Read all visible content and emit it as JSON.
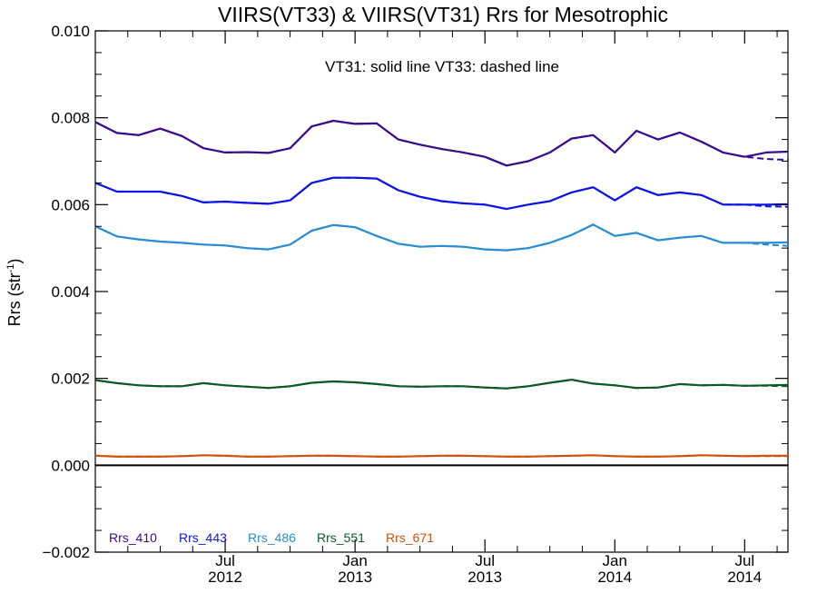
{
  "chart_data": {
    "type": "line",
    "title": "VIIRS(VT33) & VIIRS(VT31)  Rrs for Mesotrophic",
    "annotation": "VT31: solid line   VT33: dashed line",
    "ylabel": "Rrs (str",
    "ylabel_sup": "-1",
    "ylabel_close": ")",
    "ylim": [
      -0.002,
      0.01
    ],
    "yticks": [
      {
        "value": -0.002,
        "label": "−0.002"
      },
      {
        "value": 0.0,
        "label": "0.000"
      },
      {
        "value": 0.002,
        "label": "0.002"
      },
      {
        "value": 0.004,
        "label": "0.004"
      },
      {
        "value": 0.006,
        "label": "0.006"
      },
      {
        "value": 0.008,
        "label": "0.008"
      },
      {
        "value": 0.01,
        "label": "0.010"
      }
    ],
    "xlim": [
      "2012-01",
      "2014-09"
    ],
    "xticks": [
      {
        "date": "2012-07",
        "line1": "Jul",
        "line2": "2012"
      },
      {
        "date": "2013-01",
        "line1": "Jan",
        "line2": "2013"
      },
      {
        "date": "2013-07",
        "line1": "Jul",
        "line2": "2013"
      },
      {
        "date": "2014-01",
        "line1": "Jan",
        "line2": "2014"
      },
      {
        "date": "2014-07",
        "line1": "Jul",
        "line2": "2014"
      }
    ],
    "minor_ticks_per_major": 3,
    "zero_line": true,
    "legend_position": "bottom-left",
    "x": [
      "2012-01",
      "2012-02",
      "2012-03",
      "2012-04",
      "2012-05",
      "2012-06",
      "2012-07",
      "2012-08",
      "2012-09",
      "2012-10",
      "2012-11",
      "2012-12",
      "2013-01",
      "2013-02",
      "2013-03",
      "2013-04",
      "2013-05",
      "2013-06",
      "2013-07",
      "2013-08",
      "2013-09",
      "2013-10",
      "2013-11",
      "2013-12",
      "2014-01",
      "2014-02",
      "2014-03",
      "2014-04",
      "2014-05",
      "2014-06",
      "2014-07",
      "2014-08",
      "2014-09"
    ],
    "series": [
      {
        "name": "Rrs_410",
        "color": "#3a0a8c",
        "values": [
          0.0079,
          0.00765,
          0.0076,
          0.00775,
          0.00758,
          0.0073,
          0.0072,
          0.00721,
          0.00719,
          0.0073,
          0.0078,
          0.00793,
          0.00786,
          0.00787,
          0.0075,
          0.00738,
          0.00728,
          0.0072,
          0.0071,
          0.0069,
          0.007,
          0.0072,
          0.00752,
          0.0076,
          0.0072,
          0.0077,
          0.0075,
          0.00766,
          0.00745,
          0.0072,
          0.0071,
          0.0072,
          0.00722
        ],
        "dashed_values": [
          0.0079,
          0.00765,
          0.0076,
          0.00775,
          0.00758,
          0.0073,
          0.0072,
          0.00721,
          0.00719,
          0.0073,
          0.0078,
          0.00793,
          0.00786,
          0.00787,
          0.0075,
          0.00738,
          0.00728,
          0.0072,
          0.0071,
          0.0069,
          0.007,
          0.0072,
          0.00752,
          0.0076,
          0.0072,
          0.0077,
          0.0075,
          0.00766,
          0.00745,
          0.0072,
          0.0071,
          0.00705,
          0.00703
        ]
      },
      {
        "name": "Rrs_443",
        "color": "#0a14e6",
        "values": [
          0.0065,
          0.0063,
          0.0063,
          0.0063,
          0.0062,
          0.00605,
          0.00607,
          0.00604,
          0.00602,
          0.0061,
          0.0065,
          0.00662,
          0.00662,
          0.0066,
          0.00633,
          0.00618,
          0.00608,
          0.00603,
          0.006,
          0.0059,
          0.006,
          0.00608,
          0.00628,
          0.0064,
          0.0061,
          0.0064,
          0.00622,
          0.00628,
          0.00622,
          0.006,
          0.006,
          0.006,
          0.00601
        ],
        "dashed_values": [
          0.0065,
          0.0063,
          0.0063,
          0.0063,
          0.0062,
          0.00605,
          0.00607,
          0.00604,
          0.00602,
          0.0061,
          0.0065,
          0.00662,
          0.00662,
          0.0066,
          0.00633,
          0.00618,
          0.00608,
          0.00603,
          0.006,
          0.0059,
          0.006,
          0.00608,
          0.00628,
          0.0064,
          0.0061,
          0.0064,
          0.00622,
          0.00628,
          0.00622,
          0.006,
          0.006,
          0.00596,
          0.00595
        ]
      },
      {
        "name": "Rrs_486",
        "color": "#2a8cd2",
        "values": [
          0.0055,
          0.00527,
          0.0052,
          0.00515,
          0.00512,
          0.00508,
          0.00506,
          0.005,
          0.00497,
          0.00508,
          0.0054,
          0.00553,
          0.00548,
          0.00528,
          0.0051,
          0.00503,
          0.00505,
          0.00503,
          0.00497,
          0.00495,
          0.005,
          0.00512,
          0.0053,
          0.00554,
          0.00528,
          0.00535,
          0.00518,
          0.00524,
          0.00528,
          0.00512,
          0.00512,
          0.00512,
          0.00513
        ],
        "dashed_values": [
          0.0055,
          0.00527,
          0.0052,
          0.00515,
          0.00512,
          0.00508,
          0.00506,
          0.005,
          0.00497,
          0.00508,
          0.0054,
          0.00553,
          0.00548,
          0.00528,
          0.0051,
          0.00503,
          0.00505,
          0.00503,
          0.00497,
          0.00495,
          0.005,
          0.00512,
          0.0053,
          0.00554,
          0.00528,
          0.00535,
          0.00518,
          0.00524,
          0.00528,
          0.00512,
          0.00512,
          0.00508,
          0.00505
        ]
      },
      {
        "name": "Rrs_551",
        "color": "#0a5a23",
        "values": [
          0.00196,
          0.00189,
          0.00184,
          0.00182,
          0.00182,
          0.00189,
          0.00184,
          0.00181,
          0.00178,
          0.00182,
          0.0019,
          0.00193,
          0.00191,
          0.00187,
          0.00182,
          0.00181,
          0.00182,
          0.00182,
          0.00179,
          0.00177,
          0.00182,
          0.0019,
          0.00197,
          0.00188,
          0.00184,
          0.00178,
          0.00179,
          0.00187,
          0.00184,
          0.00185,
          0.00183,
          0.00184,
          0.00185
        ],
        "dashed_values": [
          0.00196,
          0.00189,
          0.00184,
          0.00182,
          0.00182,
          0.00189,
          0.00184,
          0.00181,
          0.00178,
          0.00182,
          0.0019,
          0.00193,
          0.00191,
          0.00187,
          0.00182,
          0.00181,
          0.00182,
          0.00182,
          0.00179,
          0.00177,
          0.00182,
          0.0019,
          0.00197,
          0.00188,
          0.00184,
          0.00178,
          0.00179,
          0.00187,
          0.00184,
          0.00185,
          0.00183,
          0.00183,
          0.00182
        ]
      },
      {
        "name": "Rrs_671",
        "color": "#d2500a",
        "values": [
          0.00022,
          0.0002,
          0.0002,
          0.0002,
          0.00021,
          0.00023,
          0.00022,
          0.0002,
          0.0002,
          0.00021,
          0.00022,
          0.00022,
          0.00021,
          0.0002,
          0.0002,
          0.00021,
          0.00022,
          0.00022,
          0.00021,
          0.0002,
          0.0002,
          0.00021,
          0.00022,
          0.00023,
          0.00021,
          0.0002,
          0.0002,
          0.00021,
          0.00023,
          0.00022,
          0.00021,
          0.00022,
          0.00022
        ],
        "dashed_values": [
          0.00022,
          0.0002,
          0.0002,
          0.0002,
          0.00021,
          0.00023,
          0.00022,
          0.0002,
          0.0002,
          0.00021,
          0.00022,
          0.00022,
          0.00021,
          0.0002,
          0.0002,
          0.00021,
          0.00022,
          0.00022,
          0.00021,
          0.0002,
          0.0002,
          0.00021,
          0.00022,
          0.00023,
          0.00021,
          0.0002,
          0.0002,
          0.00021,
          0.00023,
          0.00022,
          0.00021,
          0.00021,
          0.00021
        ]
      }
    ]
  }
}
